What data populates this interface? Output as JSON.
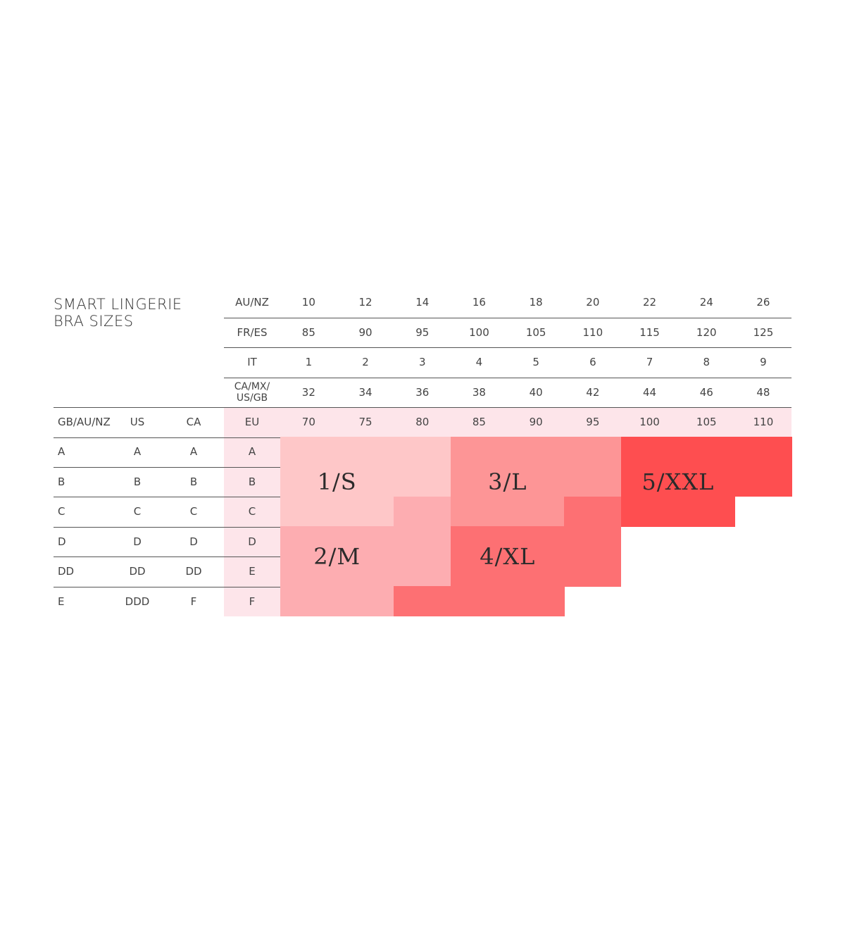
{
  "title": {
    "line1": "SMART LINGERIE",
    "line2": "BRA SIZES"
  },
  "colors": {
    "eu_band": "#fde5ea",
    "size_1s": "#fec7c8",
    "size_2m": "#fdadb1",
    "size_3l": "#fd9596",
    "size_4xl": "#fd7073",
    "size_5xxl": "#fe4e50"
  },
  "chart_data": {
    "type": "table",
    "band_rows": [
      {
        "label": "AU/NZ",
        "values": [
          "10",
          "12",
          "14",
          "16",
          "18",
          "20",
          "22",
          "24",
          "26"
        ]
      },
      {
        "label": "FR/ES",
        "values": [
          "85",
          "90",
          "95",
          "100",
          "105",
          "110",
          "115",
          "120",
          "125"
        ]
      },
      {
        "label": "IT",
        "values": [
          "1",
          "2",
          "3",
          "4",
          "5",
          "6",
          "7",
          "8",
          "9"
        ]
      },
      {
        "label": "CA/MX/ US/GB",
        "label_lines": [
          "CA/MX/",
          "US/GB"
        ],
        "values": [
          "32",
          "34",
          "36",
          "38",
          "40",
          "42",
          "44",
          "46",
          "48"
        ]
      }
    ],
    "eu_row": {
      "headers": [
        "GB/AU/NZ",
        "US",
        "CA"
      ],
      "label": "EU",
      "values": [
        "70",
        "75",
        "80",
        "85",
        "90",
        "95",
        "100",
        "105",
        "110"
      ]
    },
    "cup_rows": [
      [
        "A",
        "A",
        "A",
        "A"
      ],
      [
        "B",
        "B",
        "B",
        "B"
      ],
      [
        "C",
        "C",
        "C",
        "C"
      ],
      [
        "D",
        "D",
        "D",
        "D"
      ],
      [
        "DD",
        "DD",
        "DD",
        "E"
      ],
      [
        "E",
        "DDD",
        "F",
        "F"
      ]
    ],
    "sizes": [
      {
        "label": "1/S",
        "color_key": "size_1s",
        "cells": [
          [
            0,
            0
          ],
          [
            0,
            1
          ],
          [
            0,
            2
          ],
          [
            1,
            0
          ],
          [
            1,
            1
          ],
          [
            1,
            2
          ],
          [
            2,
            0
          ],
          [
            2,
            1
          ]
        ]
      },
      {
        "label": "2/M",
        "color_key": "size_2m",
        "cells": [
          [
            2,
            2
          ],
          [
            3,
            0
          ],
          [
            3,
            1
          ],
          [
            3,
            2
          ],
          [
            4,
            0
          ],
          [
            4,
            1
          ],
          [
            4,
            2
          ],
          [
            5,
            0
          ],
          [
            5,
            1
          ]
        ]
      },
      {
        "label": "3/L",
        "color_key": "size_3l",
        "cells": [
          [
            0,
            3
          ],
          [
            0,
            4
          ],
          [
            0,
            5
          ],
          [
            1,
            3
          ],
          [
            1,
            4
          ],
          [
            1,
            5
          ],
          [
            2,
            3
          ],
          [
            2,
            4
          ]
        ]
      },
      {
        "label": "4/XL",
        "color_key": "size_4xl",
        "cells": [
          [
            2,
            5
          ],
          [
            3,
            3
          ],
          [
            3,
            4
          ],
          [
            3,
            5
          ],
          [
            4,
            3
          ],
          [
            4,
            4
          ],
          [
            4,
            5
          ],
          [
            5,
            2
          ],
          [
            5,
            3
          ],
          [
            5,
            4
          ]
        ]
      },
      {
        "label": "5/XXL",
        "color_key": "size_5xxl",
        "cells": [
          [
            0,
            6
          ],
          [
            0,
            7
          ],
          [
            0,
            8
          ],
          [
            1,
            6
          ],
          [
            1,
            7
          ],
          [
            1,
            8
          ],
          [
            2,
            6
          ],
          [
            2,
            7
          ]
        ]
      }
    ]
  }
}
